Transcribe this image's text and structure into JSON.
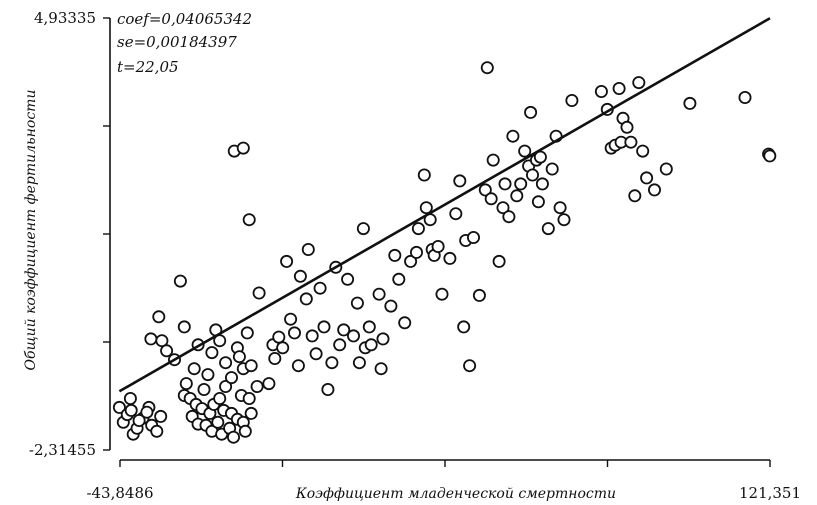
{
  "chart_data": {
    "type": "scatter",
    "title": "",
    "xlabel": "Коэффициент младенческой смертности",
    "ylabel": "Общий коэффициент фертильности",
    "xlim": [
      -43.8486,
      121.351
    ],
    "ylim": [
      -2.31455,
      4.93335
    ],
    "x_tick_labels": [
      "-43,8486",
      "121,351"
    ],
    "y_tick_labels": [
      "4,93335",
      "-2,31455"
    ],
    "stats": [
      "coef=0,04065342",
      "se=0,00184397",
      "t=22,05"
    ],
    "grid": false,
    "points": [
      [
        -44.0,
        -1.6
      ],
      [
        -43.0,
        -1.85
      ],
      [
        -42.0,
        -1.72
      ],
      [
        -41.2,
        -1.45
      ],
      [
        -40.5,
        -2.05
      ],
      [
        -39.5,
        -1.95
      ],
      [
        -38.0,
        -1.78
      ],
      [
        -36.5,
        -1.6
      ],
      [
        -35.8,
        -1.9
      ],
      [
        -34.5,
        -2.0
      ],
      [
        -33.5,
        -1.75
      ],
      [
        -41.0,
        -1.65
      ],
      [
        -39.0,
        -1.82
      ],
      [
        -37.0,
        -1.68
      ],
      [
        -36.0,
        -0.45
      ],
      [
        -34.0,
        -0.08
      ],
      [
        -33.2,
        -0.48
      ],
      [
        -32.0,
        -0.65
      ],
      [
        -30.0,
        -0.8
      ],
      [
        -28.5,
        0.52
      ],
      [
        -27.5,
        -1.4
      ],
      [
        -27.0,
        -1.2
      ],
      [
        -26.0,
        -1.45
      ],
      [
        -25.5,
        -1.75
      ],
      [
        -24.5,
        -1.55
      ],
      [
        -24.0,
        -1.88
      ],
      [
        -23.0,
        -1.62
      ],
      [
        -22.5,
        -1.3
      ],
      [
        -22.0,
        -1.9
      ],
      [
        -21.0,
        -1.7
      ],
      [
        -20.5,
        -2.0
      ],
      [
        -20.0,
        -1.55
      ],
      [
        -19.0,
        -1.85
      ],
      [
        -18.5,
        -1.45
      ],
      [
        -18.0,
        -2.05
      ],
      [
        -17.5,
        -1.65
      ],
      [
        -17.0,
        -1.25
      ],
      [
        -16.0,
        -1.95
      ],
      [
        -15.5,
        -1.7
      ],
      [
        -15.0,
        -2.1
      ],
      [
        -14.0,
        -1.8
      ],
      [
        -13.0,
        -1.4
      ],
      [
        -12.5,
        -1.85
      ],
      [
        -12.0,
        -2.0
      ],
      [
        -11.0,
        -1.45
      ],
      [
        -10.5,
        -1.7
      ],
      [
        -27.5,
        -0.25
      ],
      [
        -25.0,
        -0.95
      ],
      [
        -24.0,
        -0.55
      ],
      [
        -21.5,
        -1.05
      ],
      [
        -20.5,
        -0.68
      ],
      [
        -19.5,
        -0.3
      ],
      [
        -18.5,
        -0.48
      ],
      [
        -17.0,
        -0.85
      ],
      [
        -15.5,
        -1.1
      ],
      [
        -14.0,
        -0.6
      ],
      [
        -13.5,
        -0.75
      ],
      [
        -12.5,
        -0.95
      ],
      [
        -11.5,
        -0.35
      ],
      [
        -10.5,
        -0.9
      ],
      [
        -14.8,
        2.7
      ],
      [
        -12.5,
        2.75
      ],
      [
        -11.0,
        1.55
      ],
      [
        -9.0,
        -1.25
      ],
      [
        -8.5,
        0.32
      ],
      [
        -6.0,
        -1.2
      ],
      [
        -5.0,
        -0.55
      ],
      [
        -4.5,
        -0.78
      ],
      [
        -3.5,
        -0.42
      ],
      [
        -2.5,
        -0.6
      ],
      [
        -1.5,
        0.85
      ],
      [
        -0.5,
        -0.12
      ],
      [
        0.5,
        -0.35
      ],
      [
        1.5,
        -0.9
      ],
      [
        2.0,
        0.6
      ],
      [
        3.5,
        0.22
      ],
      [
        4.0,
        1.05
      ],
      [
        5.0,
        -0.4
      ],
      [
        6.0,
        -0.7
      ],
      [
        7.0,
        0.4
      ],
      [
        8.0,
        -0.25
      ],
      [
        9.0,
        -1.3
      ],
      [
        10.0,
        -0.85
      ],
      [
        11.0,
        0.75
      ],
      [
        12.0,
        -0.55
      ],
      [
        13.0,
        -0.3
      ],
      [
        14.0,
        0.55
      ],
      [
        15.5,
        -0.4
      ],
      [
        16.5,
        0.15
      ],
      [
        17.0,
        -0.85
      ],
      [
        18.0,
        1.4
      ],
      [
        18.5,
        -0.6
      ],
      [
        19.5,
        -0.25
      ],
      [
        20.0,
        -0.55
      ],
      [
        22.0,
        0.3
      ],
      [
        22.5,
        -0.95
      ],
      [
        23.0,
        -0.45
      ],
      [
        25.0,
        0.1
      ],
      [
        26.0,
        0.95
      ],
      [
        27.0,
        0.55
      ],
      [
        28.5,
        -0.18
      ],
      [
        30.0,
        0.85
      ],
      [
        31.5,
        1.0
      ],
      [
        32.0,
        1.4
      ],
      [
        33.5,
        2.3
      ],
      [
        34.0,
        1.75
      ],
      [
        35.0,
        1.55
      ],
      [
        35.5,
        1.05
      ],
      [
        36.0,
        0.95
      ],
      [
        37.0,
        1.1
      ],
      [
        38.0,
        0.3
      ],
      [
        40.0,
        0.9
      ],
      [
        41.5,
        1.65
      ],
      [
        42.5,
        2.2
      ],
      [
        43.5,
        -0.25
      ],
      [
        44.0,
        1.2
      ],
      [
        45.0,
        -0.9
      ],
      [
        46.0,
        1.25
      ],
      [
        47.5,
        0.28
      ],
      [
        49.0,
        2.05
      ],
      [
        49.5,
        4.1
      ],
      [
        50.5,
        1.9
      ],
      [
        51.0,
        2.55
      ],
      [
        52.5,
        0.85
      ],
      [
        53.5,
        1.75
      ],
      [
        54.0,
        2.15
      ],
      [
        55.0,
        1.6
      ],
      [
        56.0,
        2.95
      ],
      [
        57.0,
        1.95
      ],
      [
        58.0,
        2.15
      ],
      [
        59.0,
        2.7
      ],
      [
        60.0,
        2.45
      ],
      [
        60.5,
        3.35
      ],
      [
        61.0,
        2.3
      ],
      [
        62.0,
        2.55
      ],
      [
        62.5,
        1.85
      ],
      [
        63.0,
        2.6
      ],
      [
        63.5,
        2.15
      ],
      [
        65.0,
        1.4
      ],
      [
        66.0,
        2.4
      ],
      [
        67.0,
        2.95
      ],
      [
        68.0,
        1.75
      ],
      [
        69.0,
        1.55
      ],
      [
        71.0,
        3.55
      ],
      [
        78.5,
        3.7
      ],
      [
        80.0,
        3.4
      ],
      [
        81.0,
        2.75
      ],
      [
        82.0,
        2.8
      ],
      [
        83.0,
        3.75
      ],
      [
        83.5,
        2.85
      ],
      [
        84.0,
        3.25
      ],
      [
        85.0,
        3.1
      ],
      [
        86.0,
        2.85
      ],
      [
        87.0,
        1.95
      ],
      [
        88.0,
        3.85
      ],
      [
        89.0,
        2.7
      ],
      [
        90.0,
        2.25
      ],
      [
        92.0,
        2.05
      ],
      [
        95.0,
        2.4
      ],
      [
        101.0,
        3.5
      ],
      [
        115.0,
        3.6
      ],
      [
        121.0,
        2.65
      ],
      [
        121.3,
        2.62
      ]
    ],
    "fit_line": {
      "x": [
        -44.0,
        121.351
      ],
      "y": [
        -1.33,
        4.93
      ]
    }
  }
}
